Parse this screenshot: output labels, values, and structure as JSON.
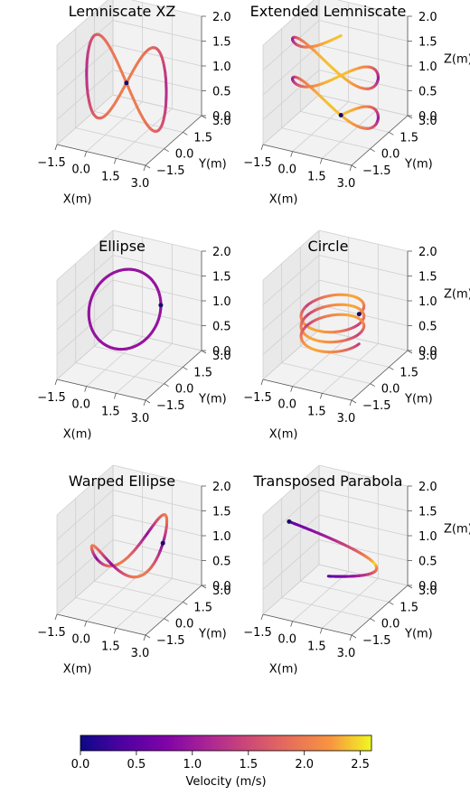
{
  "colors": {
    "pane": "#f2f2f2",
    "pane_side": "#e9e9e9",
    "grid": "#cfcfcf",
    "axis": "#555555",
    "start_marker": "#1a0a6b"
  },
  "chart_data": [
    {
      "type": "line3d",
      "title": "Lemniscate XZ",
      "xlabel": "X(m)",
      "ylabel": "Y(m)",
      "zlabel": "",
      "xlim": [
        -1.5,
        3.0
      ],
      "ylim": [
        -1.5,
        3.0
      ],
      "zlim": [
        0.0,
        2.0
      ],
      "xticks": [
        "−1.5",
        "0.0",
        "1.5",
        "3.0"
      ],
      "yticks": [
        "−1.5",
        "0.0",
        "1.5",
        "3.0"
      ],
      "zticks": [
        "0.0",
        "0.5",
        "1.0",
        "1.5",
        "2.0"
      ],
      "curve": "figure-eight in the X–Z plane",
      "velocity_range_mps": [
        0.0,
        2.1
      ]
    },
    {
      "type": "line3d",
      "title": "Extended Lemniscate",
      "xlabel": "X(m)",
      "ylabel": "Y(m)",
      "zlabel": "Z(m)",
      "xlim": [
        -1.5,
        3.0
      ],
      "ylim": [
        -1.5,
        3.0
      ],
      "zlim": [
        0.0,
        2.0
      ],
      "xticks": [
        "−1.5",
        "0.0",
        "1.5",
        "3.0"
      ],
      "yticks": [
        "−1.5",
        "0.0",
        "1.5",
        "3.0"
      ],
      "zticks": [
        "0.0",
        "0.5",
        "1.0",
        "1.5",
        "2.0"
      ],
      "curve": "stacked figure-eight loops rising in Z",
      "velocity_range_mps": [
        0.0,
        2.5
      ]
    },
    {
      "type": "line3d",
      "title": "Ellipse",
      "xlabel": "X(m)",
      "ylabel": "Y(m)",
      "zlabel": "",
      "xlim": [
        -1.5,
        3.0
      ],
      "ylim": [
        -1.5,
        3.0
      ],
      "zlim": [
        0.0,
        2.0
      ],
      "xticks": [
        "−1.5",
        "0.0",
        "1.5",
        "3.0"
      ],
      "yticks": [
        "−1.5",
        "0.0",
        "1.5",
        "3.0"
      ],
      "zticks": [
        "0.0",
        "0.5",
        "1.0",
        "1.5",
        "2.0"
      ],
      "curve": "tilted ellipse",
      "velocity_range_mps": [
        0.0,
        1.2
      ]
    },
    {
      "type": "line3d",
      "title": "Circle",
      "xlabel": "X(m)",
      "ylabel": "Y(m)",
      "zlabel": "Z(m)",
      "xlim": [
        -1.5,
        3.0
      ],
      "ylim": [
        -1.5,
        3.0
      ],
      "zlim": [
        0.0,
        2.0
      ],
      "xticks": [
        "−1.5",
        "0.0",
        "1.5",
        "3.0"
      ],
      "yticks": [
        "−1.5",
        "0.0",
        "1.5",
        "3.0"
      ],
      "zticks": [
        "0.0",
        "0.5",
        "1.0",
        "1.5",
        "2.0"
      ],
      "curve": "descending circular spiral",
      "velocity_range_mps": [
        0.0,
        2.3
      ]
    },
    {
      "type": "line3d",
      "title": "Warped Ellipse",
      "xlabel": "X(m)",
      "ylabel": "Y(m)",
      "zlabel": "",
      "xlim": [
        -1.5,
        3.0
      ],
      "ylim": [
        -1.5,
        3.0
      ],
      "zlim": [
        0.0,
        2.0
      ],
      "xticks": [
        "−1.5",
        "0.0",
        "1.5",
        "3.0"
      ],
      "yticks": [
        "−1.5",
        "0.0",
        "1.5",
        "3.0"
      ],
      "zticks": [
        "0.0",
        "0.5",
        "1.0",
        "1.5",
        "2.0"
      ],
      "curve": "warped closed loop",
      "velocity_range_mps": [
        0.0,
        2.2
      ]
    },
    {
      "type": "line3d",
      "title": "Transposed Parabola",
      "xlabel": "X(m)",
      "ylabel": "Y(m)",
      "zlabel": "Z(m)",
      "xlim": [
        -1.5,
        3.0
      ],
      "ylim": [
        -1.5,
        3.0
      ],
      "zlim": [
        0.0,
        2.0
      ],
      "xticks": [
        "−1.5",
        "0.0",
        "1.5",
        "3.0"
      ],
      "yticks": [
        "−1.5",
        "0.0",
        "1.5",
        "3.0"
      ],
      "zticks": [
        "0.0",
        "0.5",
        "1.0",
        "1.5",
        "2.0"
      ],
      "curve": "sideways parabola",
      "velocity_range_mps": [
        0.0,
        2.6
      ]
    }
  ],
  "colorbar": {
    "label": "Velocity (m/s)",
    "colormap": "plasma",
    "range": [
      0.0,
      2.6
    ],
    "ticks": [
      "0.0",
      "0.5",
      "1.0",
      "1.5",
      "2.0",
      "2.5"
    ],
    "tick_values": [
      0.0,
      0.5,
      1.0,
      1.5,
      2.0,
      2.5
    ]
  }
}
